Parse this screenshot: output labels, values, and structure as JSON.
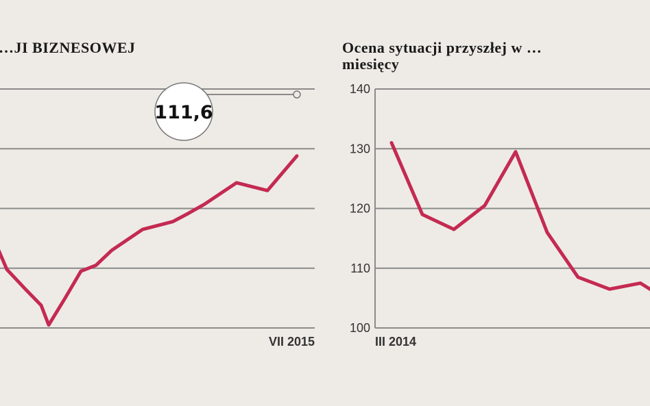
{
  "chart_data": [
    {
      "type": "line",
      "title": "…JI BIZNESOWEJ",
      "x_labels": [
        "VII 2015"
      ],
      "ylim": [
        100,
        140
      ],
      "grid": true,
      "series": [
        {
          "values": [
            113,
            109.8,
            106.5,
            103.8,
            100.5,
            105,
            109.5,
            110.5,
            113,
            116.5,
            117.8,
            119.2,
            120.7,
            124.3,
            123,
            128.8
          ]
        }
      ],
      "annotation": {
        "text": "111,6"
      },
      "color": "#c42a52"
    },
    {
      "type": "line",
      "title": "Ocena sytuacji przyszłej w …",
      "title_line2": "miesięcy",
      "x_labels": [
        "III 2014"
      ],
      "ylim": [
        100,
        140
      ],
      "yticks": [
        "140",
        "130",
        "120",
        "110",
        "100"
      ],
      "grid": true,
      "series": [
        {
          "values": [
            131,
            119,
            116.5,
            120.5,
            129.5,
            116,
            108.5,
            106.5,
            107.5,
            106
          ]
        }
      ],
      "color": "#c42a52"
    }
  ]
}
